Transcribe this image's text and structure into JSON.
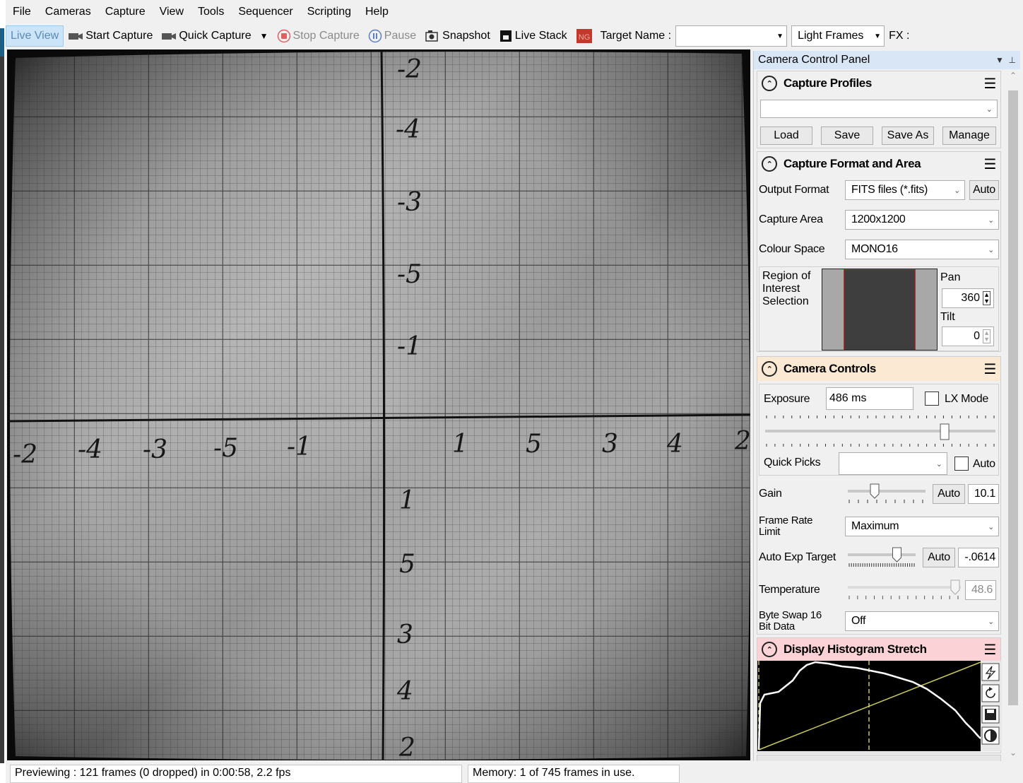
{
  "menu": [
    "File",
    "Cameras",
    "Capture",
    "View",
    "Tools",
    "Sequencer",
    "Scripting",
    "Help"
  ],
  "toolbar": {
    "live_view": "Live View",
    "start_capture": "Start Capture",
    "quick_capture": "Quick Capture",
    "stop_capture": "Stop Capture",
    "pause": "Pause",
    "snapshot": "Snapshot",
    "live_stack": "Live Stack",
    "target_name_label": "Target Name :",
    "target_name_value": "",
    "frame_type": "Light Frames",
    "fx_label": "FX :"
  },
  "viewer": {
    "vertical_axis_labels": [
      "-2",
      "-4",
      "-3",
      "-5",
      "-1",
      "1",
      "5",
      "3",
      "4",
      "2"
    ],
    "horizontal_axis_labels": [
      "-2",
      "-4",
      "-3",
      "-5",
      "-1",
      "1",
      "5",
      "3",
      "4",
      "2"
    ]
  },
  "panel": {
    "title": "Camera Control Panel",
    "capture_profiles": {
      "title": "Capture Profiles",
      "selected": "",
      "load": "Load",
      "save": "Save",
      "save_as": "Save As",
      "manage": "Manage"
    },
    "capture_format": {
      "title": "Capture Format and Area",
      "output_format_label": "Output Format",
      "output_format_value": "FITS files (*.fits)",
      "output_auto": "Auto",
      "capture_area_label": "Capture Area",
      "capture_area_value": "1200x1200",
      "colour_space_label": "Colour Space",
      "colour_space_value": "MONO16",
      "roi_label_1": "Region of",
      "roi_label_2": "Interest",
      "roi_label_3": "Selection",
      "pan_label": "Pan",
      "pan_value": "360",
      "tilt_label": "Tilt",
      "tilt_value": "0"
    },
    "camera_controls": {
      "title": "Camera Controls",
      "exposure_label": "Exposure",
      "exposure_value": "486 ms",
      "lx_mode_label": "LX Mode",
      "quick_picks_label": "Quick Picks",
      "quick_picks_value": "",
      "quick_picks_auto": "Auto",
      "gain_label": "Gain",
      "gain_auto": "Auto",
      "gain_value": "10.1",
      "frame_rate_label_1": "Frame Rate",
      "frame_rate_label_2": "Limit",
      "frame_rate_value": "Maximum",
      "auto_exp_label": "Auto Exp Target",
      "auto_exp_auto": "Auto",
      "auto_exp_value": "-.0614",
      "temperature_label": "Temperature",
      "temperature_value": "48.6",
      "byte_swap_label_1": "Byte Swap 16",
      "byte_swap_label_2": "Bit Data",
      "byte_swap_value": "Off",
      "exposure_slider_fraction": 0.79,
      "gain_slider_fraction": 0.33,
      "auto_exp_slider_fraction": 0.75,
      "temperature_slider_fraction": 0.98
    },
    "histogram": {
      "title": "Display Histogram Stretch"
    }
  },
  "status": {
    "preview": "Previewing : 121 frames (0 dropped) in 0:00:58, 2.2 fps",
    "memory": "Memory: 1 of 745 frames in use."
  }
}
